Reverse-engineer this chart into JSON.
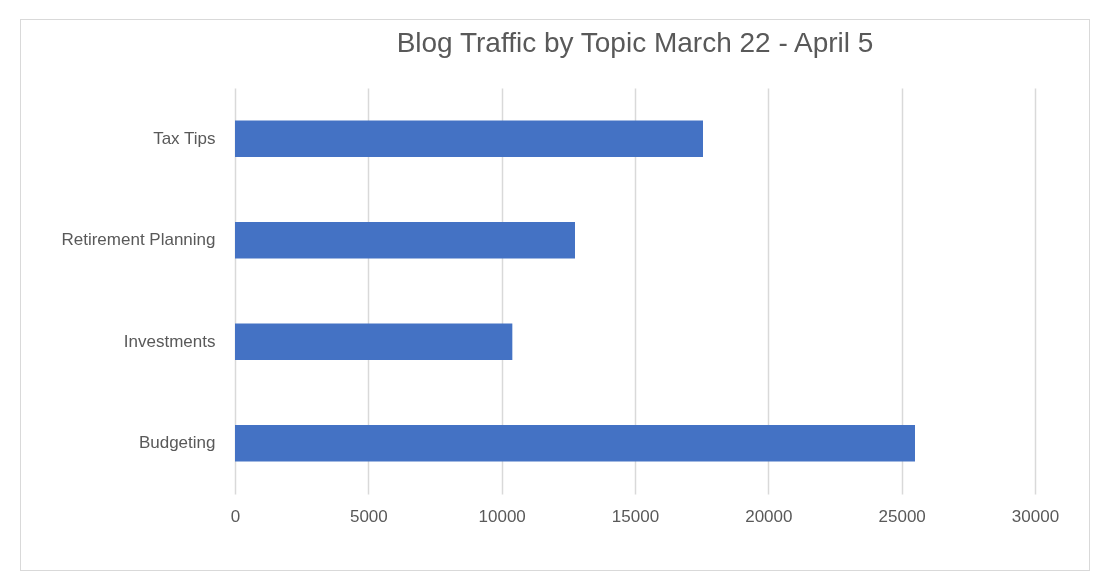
{
  "chart_data": {
    "type": "bar",
    "orientation": "horizontal",
    "title": "Blog Traffic by Topic March 22 - April 5",
    "categories": [
      "Tax Tips",
      "Retirement Planning",
      "Investments",
      "Budgeting"
    ],
    "values": [
      17550,
      12750,
      10400,
      25500
    ],
    "color": "#4472c4",
    "xlim": [
      0,
      30000
    ],
    "xticks": [
      0,
      5000,
      10000,
      15000,
      20000,
      25000,
      30000
    ],
    "grid": "x"
  }
}
